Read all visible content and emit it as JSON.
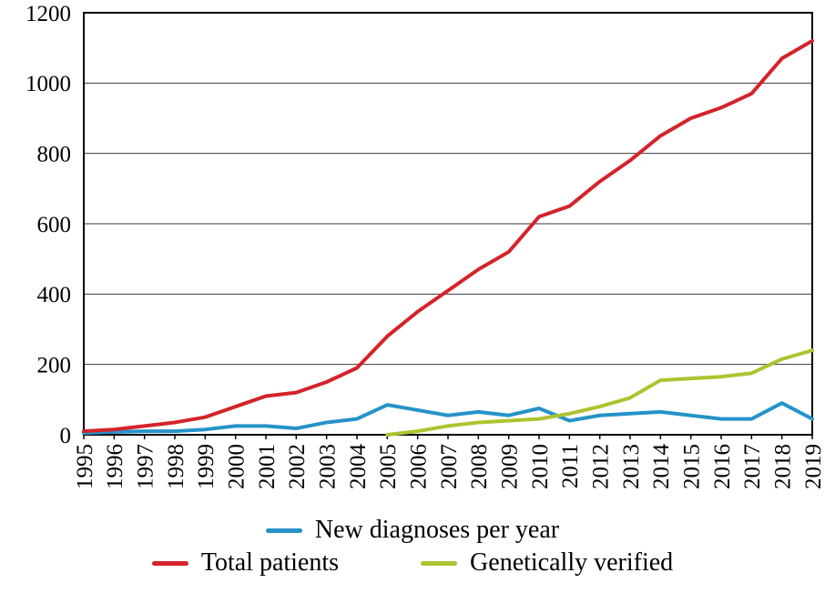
{
  "chart_data": {
    "type": "line",
    "title": "",
    "xlabel": "",
    "ylabel": "",
    "x": [
      1995,
      1996,
      1997,
      1998,
      1999,
      2000,
      2001,
      2002,
      2003,
      2004,
      2005,
      2006,
      2007,
      2008,
      2009,
      2010,
      2011,
      2012,
      2013,
      2014,
      2015,
      2016,
      2017,
      2018,
      2019
    ],
    "ylim": [
      0,
      1200
    ],
    "ytick_step": 200,
    "grid": true,
    "legend_position": "bottom",
    "series": [
      {
        "name": "New diagnoses per year",
        "color": "#2593c8",
        "values": [
          5,
          8,
          10,
          10,
          15,
          25,
          25,
          18,
          35,
          45,
          85,
          70,
          55,
          65,
          55,
          75,
          40,
          55,
          60,
          65,
          55,
          45,
          45,
          90,
          45
        ]
      },
      {
        "name": "Total patients",
        "color": "#d4232a",
        "values": [
          10,
          15,
          25,
          35,
          50,
          80,
          110,
          120,
          150,
          190,
          280,
          350,
          410,
          470,
          520,
          620,
          650,
          720,
          780,
          850,
          900,
          930,
          970,
          1070,
          1120
        ]
      },
      {
        "name": "Genetically verified",
        "color": "#aec330",
        "values": [
          null,
          null,
          null,
          null,
          null,
          null,
          null,
          null,
          null,
          null,
          0,
          10,
          25,
          35,
          40,
          45,
          60,
          80,
          105,
          155,
          160,
          165,
          175,
          215,
          240
        ]
      }
    ],
    "style": {
      "grid_color": "#3a3a3a",
      "frame_color": "#000000",
      "line_width": 4
    }
  }
}
